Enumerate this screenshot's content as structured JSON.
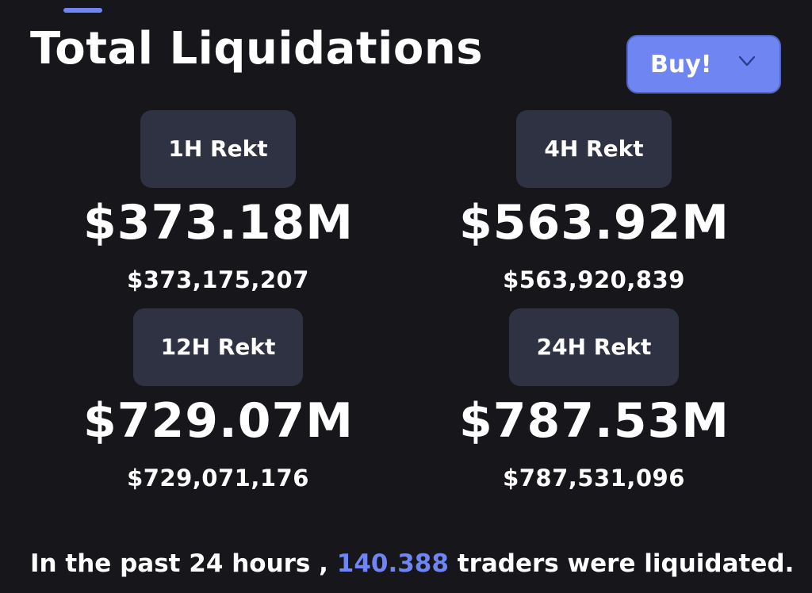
{
  "header": {
    "title": "Total Liquidations",
    "buy_label": "Buy!",
    "accent_color": "#6f86f2"
  },
  "stats": [
    {
      "period": "1H Rekt",
      "amount_short": "$373.18M",
      "amount_full": "$373,175,207"
    },
    {
      "period": "4H Rekt",
      "amount_short": "$563.92M",
      "amount_full": "$563,920,839"
    },
    {
      "period": "12H Rekt",
      "amount_short": "$729.07M",
      "amount_full": "$729,071,176"
    },
    {
      "period": "24H Rekt",
      "amount_short": "$787.53M",
      "amount_full": "$787,531,096"
    }
  ],
  "summary": {
    "prefix": "In the past 24 hours ,",
    "count": "140.388",
    "suffix": "traders were liquidated."
  }
}
